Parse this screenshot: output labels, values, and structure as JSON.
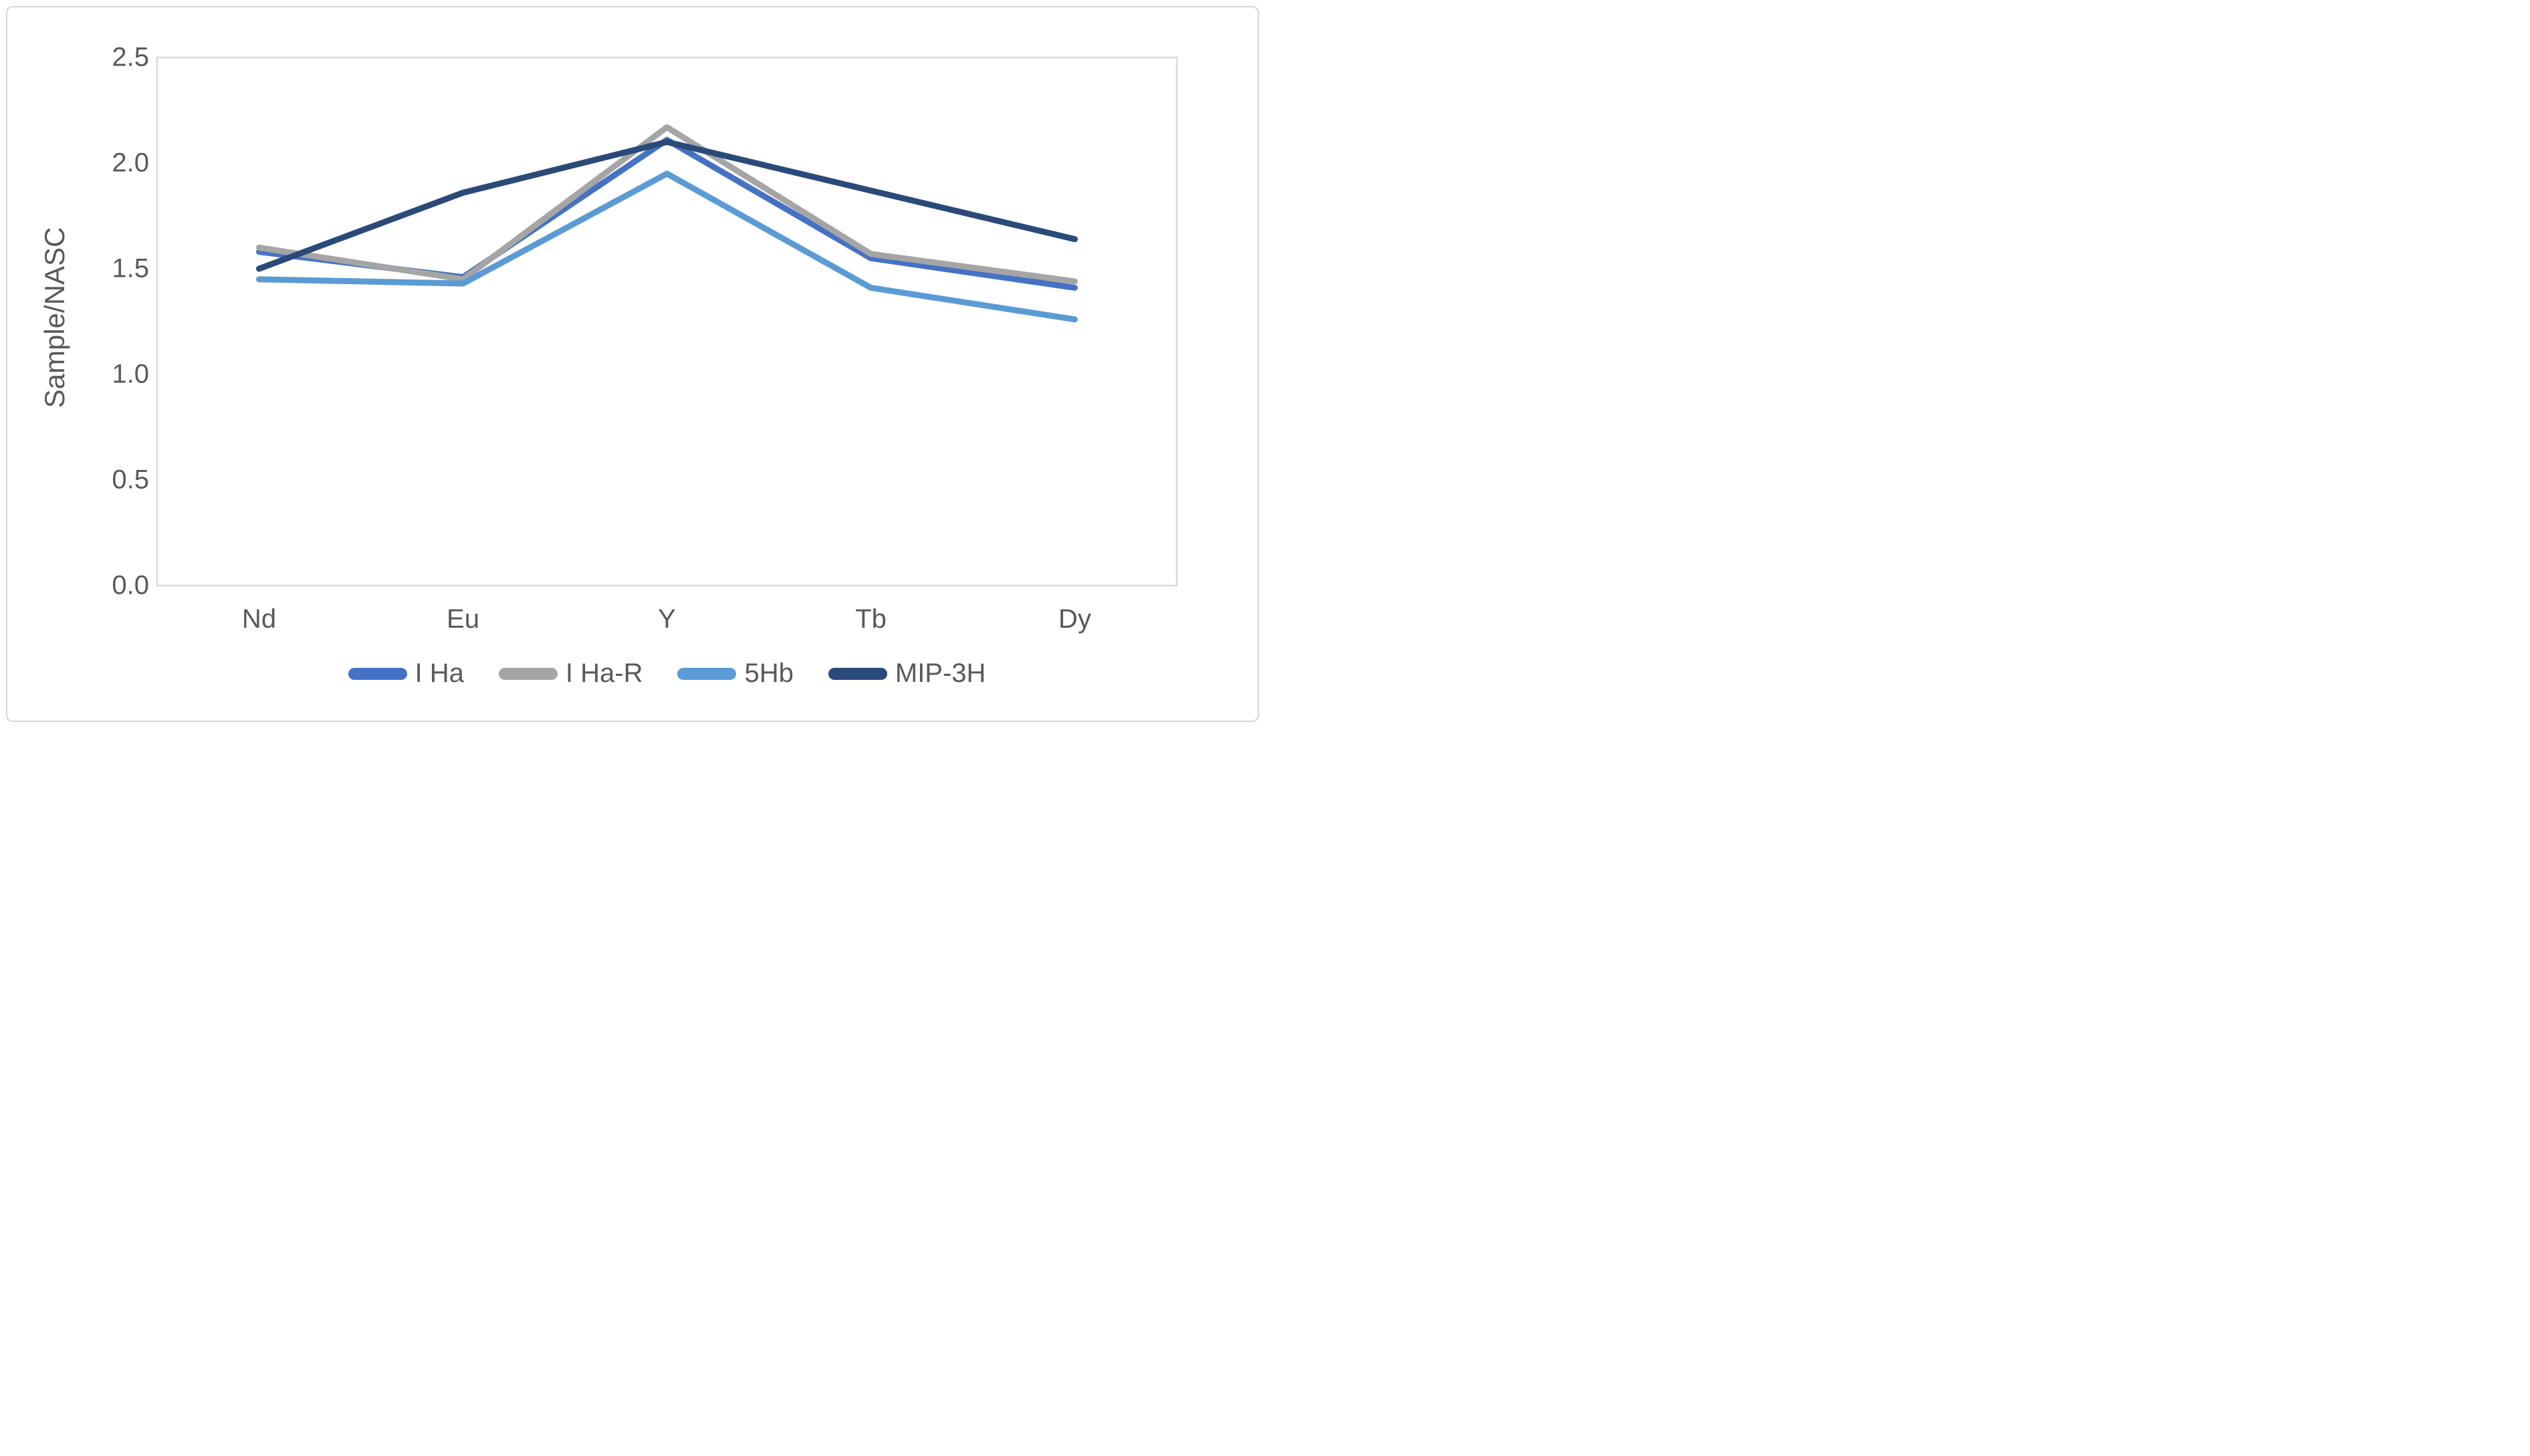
{
  "figure": {
    "background": "#ffffff",
    "frame_border_color": "#d5d5d5",
    "plot_border_color": "#d9d9d9",
    "text_color": "#595959"
  },
  "chart_data": {
    "type": "line",
    "title": "",
    "xlabel": "",
    "ylabel": "Sample/NASC",
    "categories": [
      "Nd",
      "Eu",
      "Y",
      "Tb",
      "Dy"
    ],
    "ylim": [
      0.0,
      2.5
    ],
    "ytick_labels": [
      "0.0",
      "0.5",
      "1.0",
      "1.5",
      "2.0",
      "2.5"
    ],
    "grid": false,
    "legend_position": "bottom",
    "series": [
      {
        "name": "I Ha",
        "color": "#4472C4",
        "values": [
          1.58,
          1.46,
          2.11,
          1.55,
          1.41
        ]
      },
      {
        "name": "I Ha-R",
        "color": "#A5A5A5",
        "values": [
          1.6,
          1.45,
          2.17,
          1.57,
          1.44
        ]
      },
      {
        "name": "5Hb",
        "color": "#5B9BD5",
        "values": [
          1.45,
          1.43,
          1.95,
          1.41,
          1.26
        ]
      },
      {
        "name": "MIP-3H",
        "color": "#2A4A7A",
        "values": [
          1.5,
          1.86,
          2.1,
          1.87,
          1.64
        ]
      }
    ]
  }
}
